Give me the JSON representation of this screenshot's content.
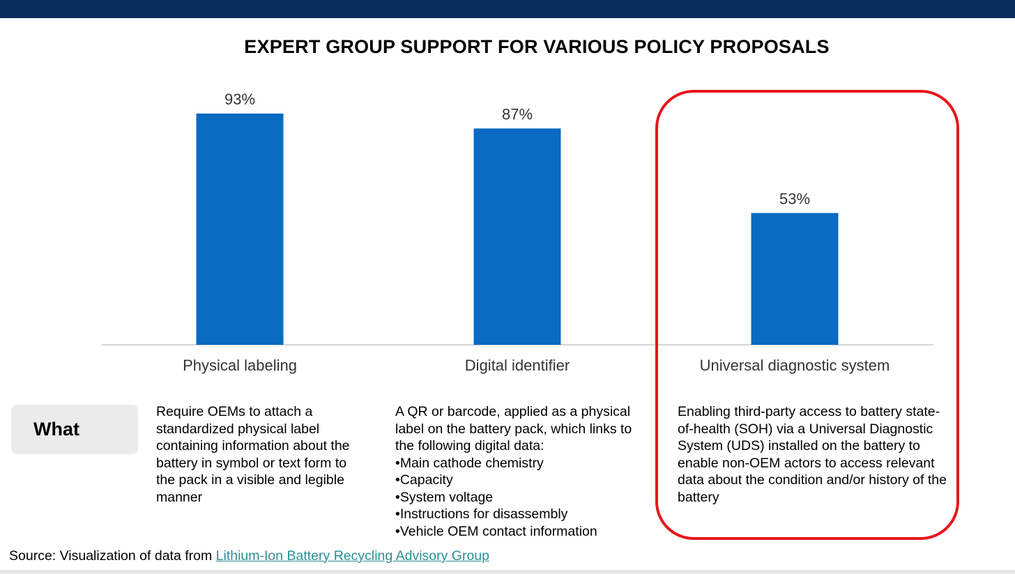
{
  "colors": {
    "top_bar": "#0b2d5e",
    "bar": "#0a6bc2",
    "highlight": "#e8161b",
    "axis": "#c8c8c8",
    "text": "#000000",
    "category_text": "#333333",
    "link": "#2a8f95"
  },
  "chart_data": {
    "type": "bar",
    "title": "EXPERT GROUP SUPPORT FOR VARIOUS POLICY PROPOSALS",
    "categories": [
      "Physical labeling",
      "Digital identifier",
      "Universal diagnostic system"
    ],
    "values": [
      93,
      87,
      53
    ],
    "value_labels": [
      "93%",
      "87%",
      "53%"
    ],
    "ylim": [
      0,
      100
    ],
    "grid": false,
    "highlighted_category": "Universal diagnostic system"
  },
  "what": {
    "label": "What",
    "descriptions": [
      {
        "text": "Require OEMs to attach a standardized physical label containing information about the battery in symbol or text form to the pack in a visible and legible manner",
        "bullets": []
      },
      {
        "text": "A QR or barcode, applied as a physical label on the battery pack, which links to the following digital data:",
        "bullets": [
          "Main cathode chemistry",
          "Capacity",
          "System voltage",
          "Instructions for disassembly",
          "Vehicle OEM contact information"
        ]
      },
      {
        "text": "Enabling third-party access to battery state-of-health (SOH) via a Universal Diagnostic System (UDS) installed on the battery to enable non-OEM actors to access relevant data about the condition and/or history of the battery",
        "bullets": []
      }
    ]
  },
  "source": {
    "prefix": "Source: Visualization of data from ",
    "link_text": "Lithium-Ion Battery Recycling Advisory Group"
  }
}
